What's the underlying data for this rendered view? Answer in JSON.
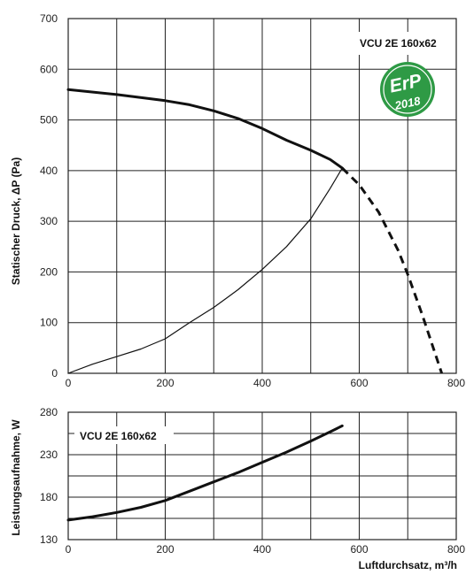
{
  "chart_data": [
    {
      "type": "line",
      "ylabel": "Statischer Druck, ΔP (Pa)",
      "xlim": [
        0,
        800
      ],
      "ylim": [
        0,
        700
      ],
      "x_ticks": [
        "0",
        "200",
        "400",
        "600",
        "800"
      ],
      "y_ticks": [
        "0",
        "100",
        "200",
        "300",
        "400",
        "500",
        "600",
        "700"
      ],
      "grid": true,
      "model_label": "VCU 2E 160x62",
      "badge": {
        "text_top": "ErP",
        "text_bottom": "2018",
        "color": "#2e9a45"
      },
      "series": [
        {
          "style": "thick-solid",
          "x": [
            0,
            100,
            200,
            250,
            300,
            350,
            400,
            450,
            500,
            540,
            565
          ],
          "y": [
            560,
            550,
            538,
            530,
            518,
            503,
            483,
            460,
            440,
            422,
            405
          ]
        },
        {
          "style": "thick-dashed",
          "x": [
            565,
            600,
            640,
            680,
            700,
            730,
            770
          ],
          "y": [
            405,
            372,
            318,
            243,
            195,
            115,
            0
          ]
        },
        {
          "style": "thin-solid",
          "x": [
            0,
            50,
            100,
            150,
            200,
            250,
            300,
            350,
            400,
            450,
            500,
            540,
            565
          ],
          "y": [
            0,
            18,
            33,
            48,
            68,
            100,
            130,
            165,
            205,
            250,
            305,
            365,
            405
          ]
        }
      ]
    },
    {
      "type": "line",
      "ylabel": "Leistungsaufnahme, W",
      "xlabel": "Luftdurchsatz, m³/h",
      "xlim": [
        0,
        800
      ],
      "ylim": [
        130,
        280
      ],
      "x_ticks": [
        "0",
        "200",
        "400",
        "600",
        "800"
      ],
      "y_ticks": [
        "130",
        "180",
        "230",
        "280"
      ],
      "grid": true,
      "model_label": "VCU 2E 160x62",
      "series": [
        {
          "style": "thick-solid",
          "x": [
            0,
            50,
            100,
            150,
            200,
            250,
            300,
            350,
            400,
            450,
            500,
            540,
            565
          ],
          "y": [
            153,
            157,
            162,
            168,
            176,
            187,
            198,
            209,
            221,
            233,
            246,
            257,
            264
          ]
        }
      ]
    }
  ]
}
